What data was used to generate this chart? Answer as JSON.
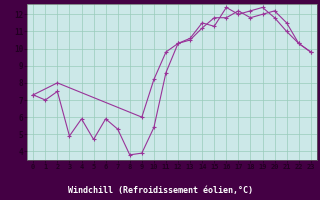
{
  "xlabel": "Windchill (Refroidissement éolien,°C)",
  "bg_color": "#cce8e8",
  "plot_bg_color": "#cce8e8",
  "line_color": "#993399",
  "grid_color": "#99ccbb",
  "label_bar_color": "#440044",
  "label_text_color": "#ffffff",
  "xlim": [
    -0.5,
    23.5
  ],
  "ylim": [
    3.5,
    12.6
  ],
  "xticks": [
    0,
    1,
    2,
    3,
    4,
    5,
    6,
    7,
    8,
    9,
    10,
    11,
    12,
    13,
    14,
    15,
    16,
    17,
    18,
    19,
    20,
    21,
    22,
    23
  ],
  "yticks": [
    4,
    5,
    6,
    7,
    8,
    9,
    10,
    11,
    12
  ],
  "series1_x": [
    0,
    1,
    2,
    3,
    4,
    5,
    6,
    7,
    8,
    9,
    10,
    11,
    12,
    13,
    14,
    15,
    16,
    17,
    18,
    19,
    20,
    21,
    22,
    23
  ],
  "series1_y": [
    7.3,
    7.0,
    7.5,
    4.9,
    5.9,
    4.7,
    5.9,
    5.3,
    3.8,
    3.9,
    5.4,
    8.6,
    10.3,
    10.6,
    11.5,
    11.3,
    12.4,
    12.0,
    12.2,
    12.4,
    11.8,
    11.0,
    10.3,
    9.8
  ],
  "series2_x": [
    0,
    2,
    9,
    10,
    11,
    12,
    13,
    14,
    15,
    16,
    17,
    18,
    19,
    20,
    21,
    22,
    23
  ],
  "series2_y": [
    7.3,
    8.0,
    6.0,
    8.2,
    9.8,
    10.3,
    10.5,
    11.2,
    11.8,
    11.8,
    12.2,
    11.8,
    12.0,
    12.2,
    11.5,
    10.3,
    9.8
  ]
}
